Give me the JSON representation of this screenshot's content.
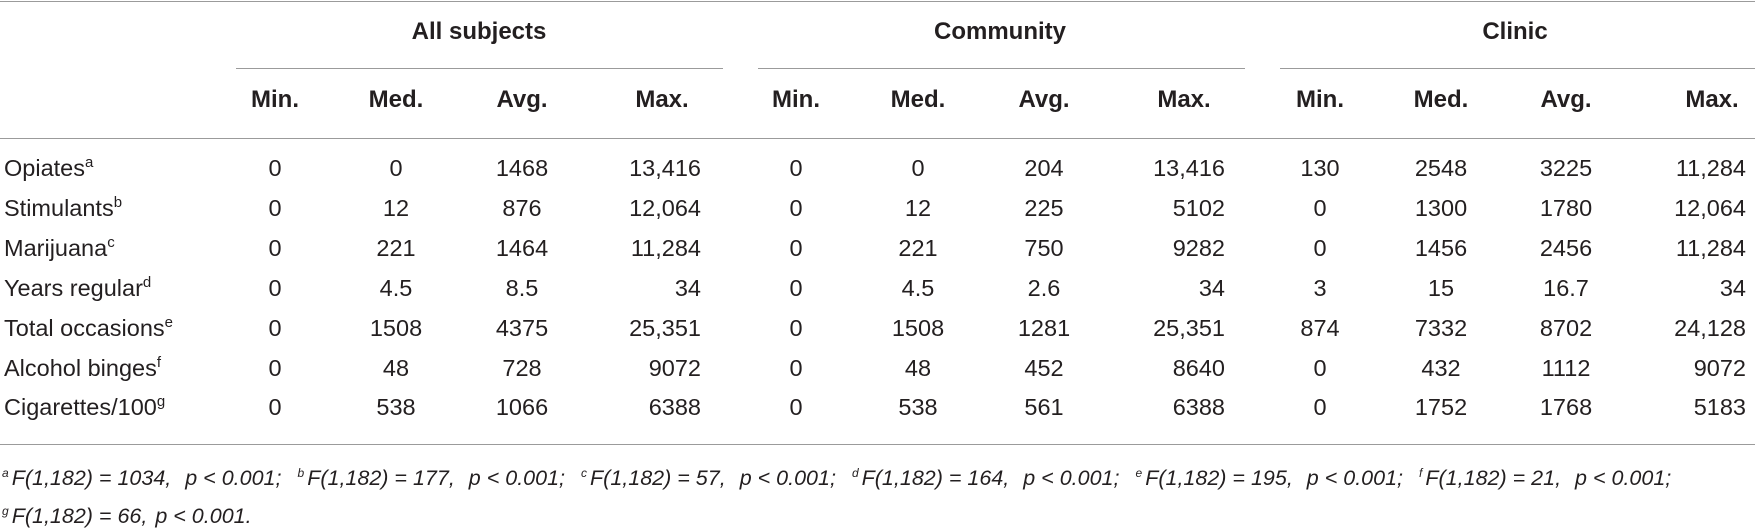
{
  "groups": [
    {
      "label": "All subjects"
    },
    {
      "label": "Community"
    },
    {
      "label": "Clinic"
    }
  ],
  "columns": [
    "Min.",
    "Med.",
    "Avg.",
    "Max."
  ],
  "rows": [
    {
      "label": "Opiates",
      "sup": "a",
      "values": [
        "0",
        "0",
        "1468",
        "13,416",
        "0",
        "0",
        "204",
        "13,416",
        "130",
        "2548",
        "3225",
        "11,284"
      ]
    },
    {
      "label": "Stimulants",
      "sup": "b",
      "values": [
        "0",
        "12",
        "876",
        "12,064",
        "0",
        "12",
        "225",
        "5102",
        "0",
        "1300",
        "1780",
        "12,064"
      ]
    },
    {
      "label": "Marijuana",
      "sup": "c",
      "values": [
        "0",
        "221",
        "1464",
        "11,284",
        "0",
        "221",
        "750",
        "9282",
        "0",
        "1456",
        "2456",
        "11,284"
      ]
    },
    {
      "label": "Years regular",
      "sup": "d",
      "values": [
        "0",
        "4.5",
        "8.5",
        "34",
        "0",
        "4.5",
        "2.6",
        "34",
        "3",
        "15",
        "16.7",
        "34"
      ]
    },
    {
      "label": "Total occasions",
      "sup": "e",
      "values": [
        "0",
        "1508",
        "4375",
        "25,351",
        "0",
        "1508",
        "1281",
        "25,351",
        "874",
        "7332",
        "8702",
        "24,128"
      ]
    },
    {
      "label": "Alcohol binges",
      "sup": "f",
      "values": [
        "0",
        "48",
        "728",
        "9072",
        "0",
        "48",
        "452",
        "8640",
        "0",
        "432",
        "1112",
        "9072"
      ]
    },
    {
      "label": "Cigarettes/100",
      "sup": "g",
      "values": [
        "0",
        "538",
        "1066",
        "6388",
        "0",
        "538",
        "561",
        "6388",
        "0",
        "1752",
        "1768",
        "5183"
      ]
    }
  ],
  "footnotes": [
    {
      "sup": "a",
      "stat": "F(1,182) = 1034,",
      "p": "p < 0.001;"
    },
    {
      "sup": "b",
      "stat": "F(1,182) = 177,",
      "p": "p < 0.001;"
    },
    {
      "sup": "c",
      "stat": "F(1,182) = 57,",
      "p": "p < 0.001;"
    },
    {
      "sup": "d",
      "stat": "F(1,182) = 164,",
      "p": "p < 0.001;"
    },
    {
      "sup": "e",
      "stat": "F(1,182) = 195,",
      "p": "p < 0.001;"
    },
    {
      "sup": "f",
      "stat": "F(1,182) = 21,",
      "p": "p < 0.001;"
    },
    {
      "sup": "g",
      "stat": "F(1,182) = 66,",
      "p": "p < 0.001."
    }
  ]
}
